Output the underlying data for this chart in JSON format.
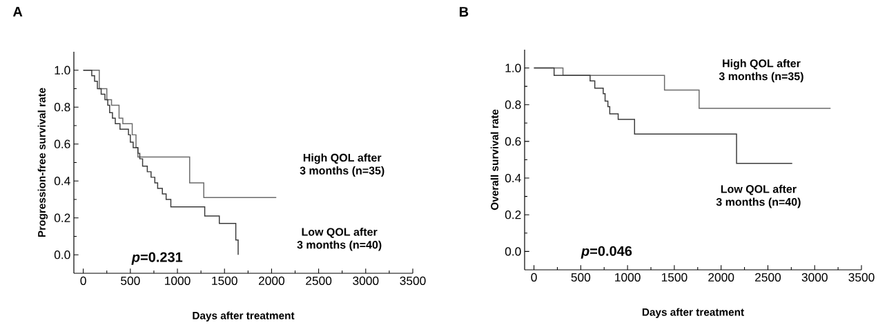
{
  "chart_data": [
    {
      "type": "step",
      "title": "A",
      "xlabel": "Days after treatment",
      "ylabel": "Progression-free survival rate",
      "xlim": [
        -100,
        3500
      ],
      "ylim": [
        -0.1,
        1.1
      ],
      "xticks": [
        0,
        500,
        1000,
        1500,
        2000,
        2500,
        3000,
        3500
      ],
      "yticks": [
        {
          "value": 0,
          "label": "0.0"
        },
        {
          "value": 0.2,
          "label": "0.2"
        },
        {
          "value": 0.4,
          "label": "0.4"
        },
        {
          "value": 0.6,
          "label": "0.6"
        },
        {
          "value": 0.8,
          "label": "0.8"
        },
        {
          "value": 1,
          "label": "1.0"
        }
      ],
      "annotations": [
        "*p*=0.231"
      ],
      "series": [
        {
          "name": "High QOL after 3 months (n=35)",
          "color": "#6a6a6a",
          "x": [
            0,
            170,
            250,
            300,
            380,
            420,
            520,
            560,
            580,
            1130,
            1280,
            2050
          ],
          "values": [
            1.0,
            0.9,
            0.84,
            0.81,
            0.74,
            0.71,
            0.65,
            0.58,
            0.53,
            0.39,
            0.31,
            0.31
          ]
        },
        {
          "name": "Low QOL after 3 months (n=40)",
          "color": "#3a3a3a",
          "x": [
            0,
            90,
            120,
            150,
            190,
            230,
            260,
            280,
            310,
            340,
            390,
            480,
            500,
            530,
            580,
            600,
            630,
            680,
            720,
            760,
            790,
            840,
            880,
            930,
            1290,
            1445,
            1620,
            1645
          ],
          "values": [
            1.0,
            0.97,
            0.94,
            0.9,
            0.87,
            0.84,
            0.81,
            0.77,
            0.74,
            0.71,
            0.68,
            0.65,
            0.61,
            0.58,
            0.55,
            0.52,
            0.48,
            0.45,
            0.42,
            0.39,
            0.36,
            0.33,
            0.3,
            0.26,
            0.21,
            0.17,
            0.08,
            0.0
          ]
        }
      ]
    },
    {
      "type": "step",
      "title": "B",
      "xlabel": "Days after treatment",
      "ylabel": "Overall survival rate",
      "xlim": [
        -100,
        3500
      ],
      "ylim": [
        -0.1,
        1.1
      ],
      "xticks": [
        0,
        500,
        1000,
        1500,
        2000,
        2500,
        3000,
        3500
      ],
      "yticks": [
        {
          "value": 0,
          "label": "0.0"
        },
        {
          "value": 0.2,
          "label": "0.2"
        },
        {
          "value": 0.4,
          "label": "0.4"
        },
        {
          "value": 0.6,
          "label": "0.6"
        },
        {
          "value": 0.8,
          "label": "0.8"
        },
        {
          "value": 1,
          "label": "1.0"
        }
      ],
      "annotations": [
        "*p*=0.046"
      ],
      "series": [
        {
          "name": "High QOL after 3 months (n=35)",
          "color": "#6a6a6a",
          "x": [
            0,
            310,
            1395,
            1765,
            3170
          ],
          "values": [
            1.0,
            0.96,
            0.88,
            0.78,
            0.78
          ]
        },
        {
          "name": "Low QOL after 3 months (n=40)",
          "color": "#3a3a3a",
          "x": [
            0,
            215,
            600,
            650,
            740,
            760,
            790,
            810,
            900,
            1075,
            2165,
            2760
          ],
          "values": [
            1.0,
            0.96,
            0.93,
            0.89,
            0.86,
            0.82,
            0.79,
            0.75,
            0.72,
            0.64,
            0.48,
            0.48
          ]
        }
      ]
    }
  ]
}
